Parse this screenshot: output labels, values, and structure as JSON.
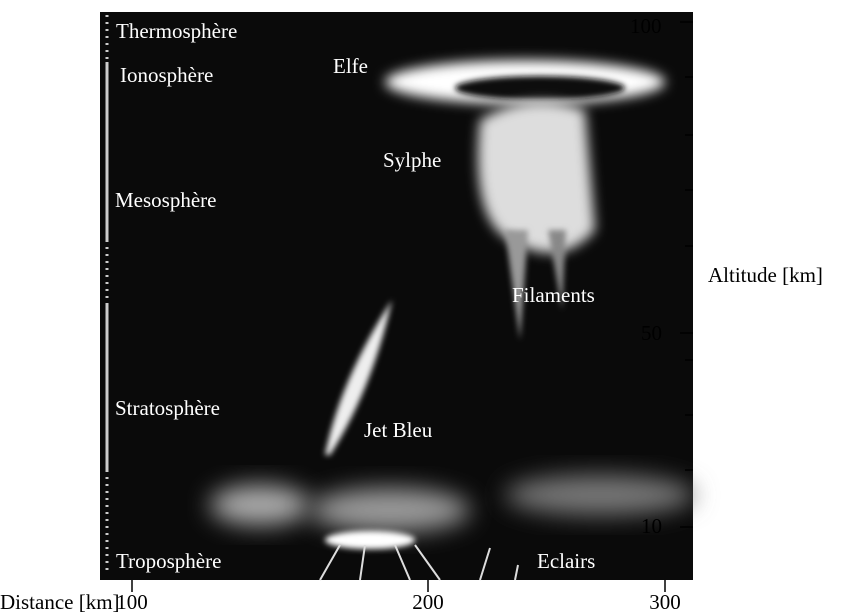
{
  "layers": [
    "Thermosphère",
    "Ionosphère",
    "Mesosphère",
    "Stratosphère",
    "Troposphère"
  ],
  "phenomena": [
    "Elfe",
    "Sylphe",
    "Filaments",
    "Jet Bleu",
    "Eclairs"
  ],
  "axes": {
    "x_label": "Distance [km]",
    "x_ticks": [
      "100",
      "200",
      "300"
    ],
    "y_label": "Altitude [km]",
    "y_ticks": [
      "100",
      "50",
      "10"
    ]
  }
}
